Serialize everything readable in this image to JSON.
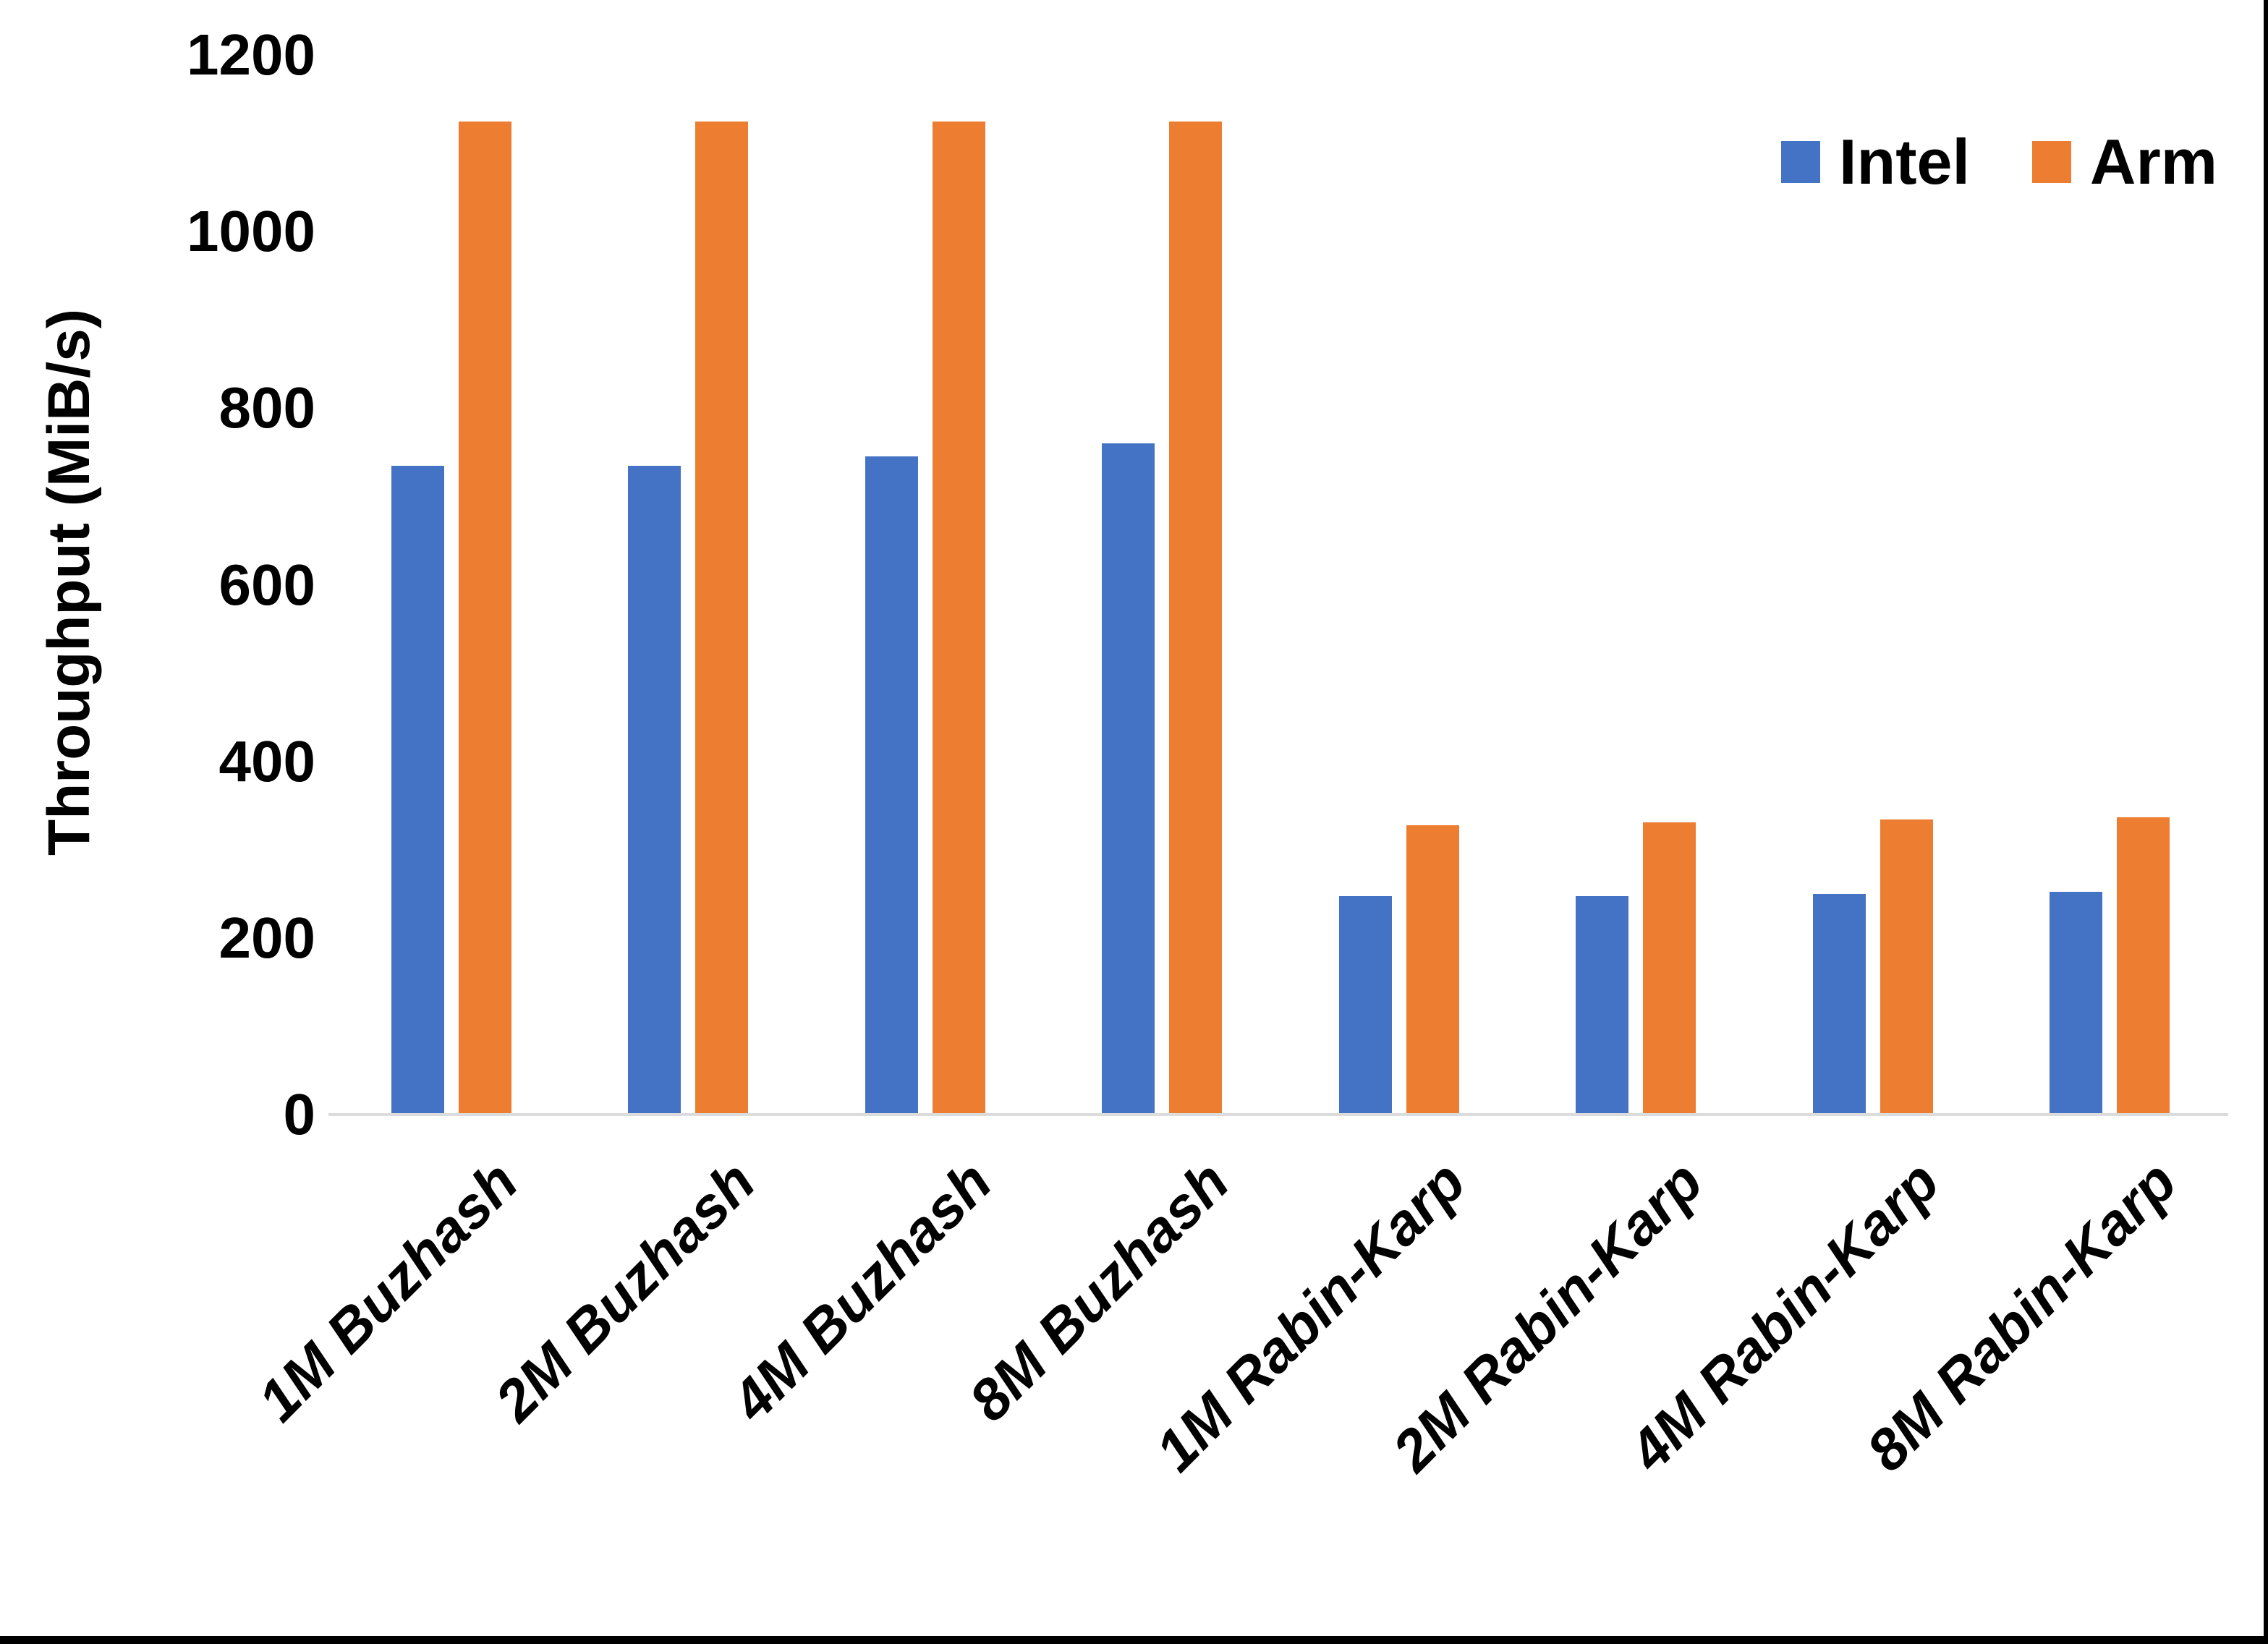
{
  "chart_data": {
    "type": "bar",
    "title": "",
    "xlabel": "",
    "ylabel": "Throughput (MiB/s)",
    "ylim": [
      0,
      1200
    ],
    "yticks": [
      0,
      200,
      400,
      600,
      800,
      1000,
      1200
    ],
    "grid": false,
    "legend_position": "top-right",
    "categories": [
      "1M Buzhash",
      "2M Buzhash",
      "4M Buzhash",
      "8M Buzhash",
      "1M Rabin-Karp",
      "2M Rabin-Karp",
      "4M Rabin-Karp",
      "8M Rabin-Karp"
    ],
    "series": [
      {
        "name": "Intel",
        "color": "#4472C4",
        "values": [
          735,
          735,
          745,
          760,
          247,
          247,
          250,
          252
        ]
      },
      {
        "name": "Arm",
        "color": "#ED7D31",
        "values": [
          1125,
          1125,
          1125,
          1125,
          328,
          331,
          334,
          337
        ]
      }
    ]
  },
  "colors": {
    "background": "#FFFFFF",
    "axis_line": "#DCDCDC",
    "text": "#000000",
    "edge_border": "#000000"
  }
}
